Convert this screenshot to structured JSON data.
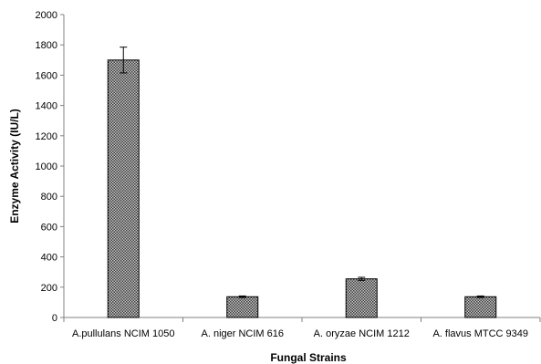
{
  "chart_data": {
    "type": "bar",
    "title": "",
    "xlabel": "Fungal Strains",
    "ylabel": "Enzyme Activity (IU/L)",
    "ylim": [
      0,
      2000
    ],
    "yticks": [
      0,
      200,
      400,
      600,
      800,
      1000,
      1200,
      1400,
      1600,
      1800,
      2000
    ],
    "categories": [
      "A.pullulans NCIM 1050",
      "A. niger NCIM 616",
      "A. oryzae NCIM 1212",
      "A. flavus MTCC 9349"
    ],
    "values": [
      1700,
      137,
      255,
      137
    ],
    "errors": [
      85,
      5,
      10,
      5
    ],
    "bar_fill": "crosshatch-gray",
    "grid": false,
    "legend": "none"
  }
}
